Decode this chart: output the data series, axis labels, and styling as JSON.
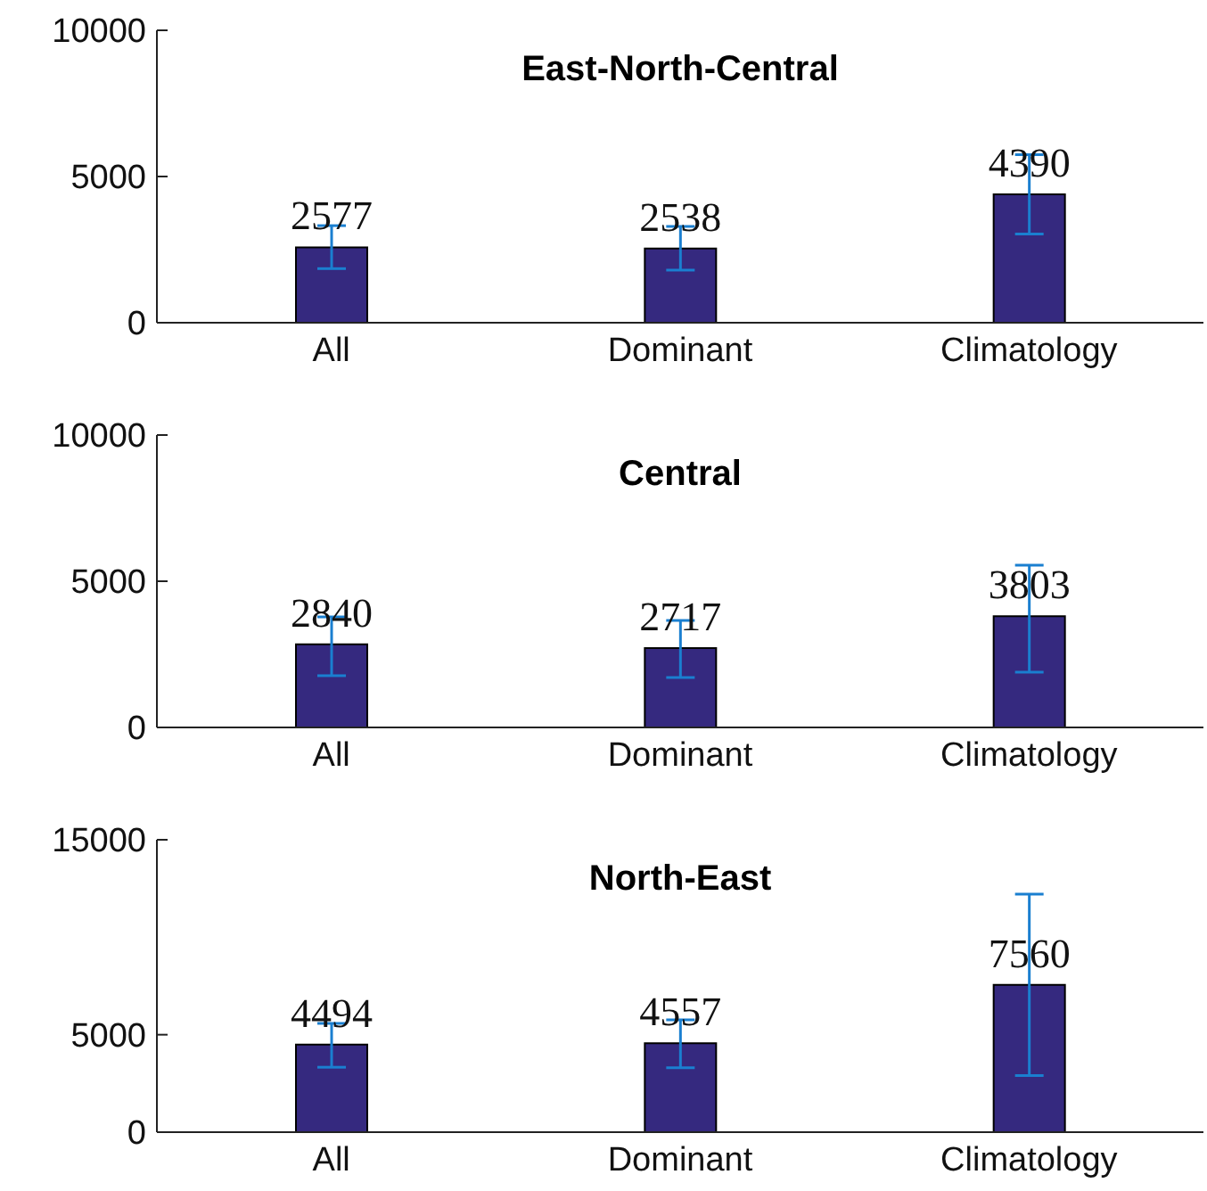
{
  "chart_data": [
    {
      "type": "bar",
      "title": "East-North-Central",
      "categories": [
        "All",
        "Dominant",
        "Climatology"
      ],
      "values": [
        2577,
        2538,
        4390
      ],
      "errors": [
        [
          1850,
          3320
        ],
        [
          1800,
          3290
        ],
        [
          3030,
          5750
        ]
      ],
      "color": "#35297f",
      "ylim": [
        0,
        10000
      ],
      "yticks": [
        0,
        5000,
        10000
      ],
      "data_labels": true
    },
    {
      "type": "bar",
      "title": "Central",
      "categories": [
        "All",
        "Dominant",
        "Climatology"
      ],
      "values": [
        2840,
        2717,
        3803
      ],
      "errors": [
        [
          1770,
          3780
        ],
        [
          1710,
          3660
        ],
        [
          1890,
          5550
        ]
      ],
      "color": "#35297f",
      "ylim": [
        0,
        10000
      ],
      "yticks": [
        0,
        5000,
        10000
      ],
      "data_labels": true
    },
    {
      "type": "bar",
      "title": "North-East",
      "categories": [
        "All",
        "Dominant",
        "Climatology"
      ],
      "values": [
        4494,
        4557,
        7560
      ],
      "errors": [
        [
          3330,
          5580
        ],
        [
          3300,
          5760
        ],
        [
          2900,
          12210
        ]
      ],
      "color": "#35297f",
      "ylim": [
        0,
        15000
      ],
      "yticks": [
        0,
        5000,
        15000
      ],
      "data_labels": true
    }
  ]
}
